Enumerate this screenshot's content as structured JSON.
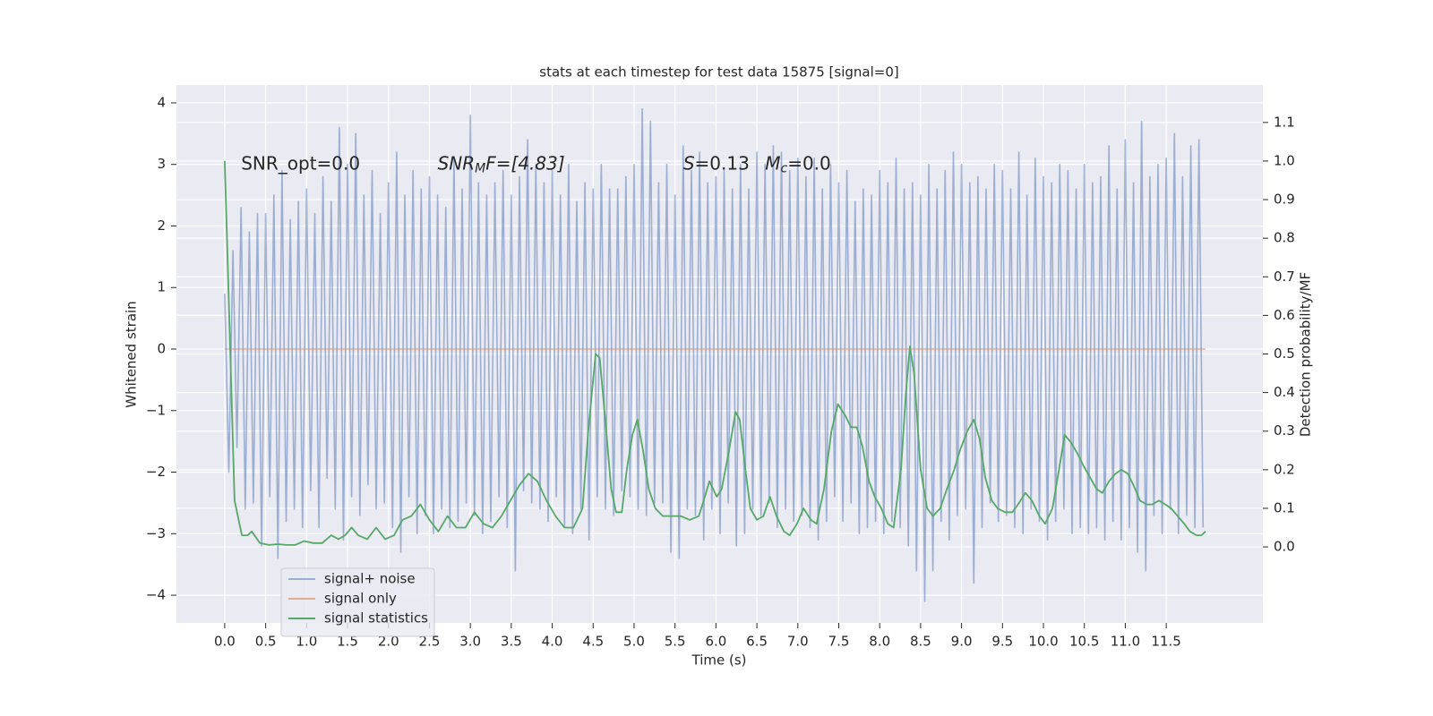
{
  "chart_data": {
    "type": "line",
    "title": "stats at each timestep for test data 15875 [signal=0]",
    "xlabel": "Time (s)",
    "ylabel": "Whitened strain",
    "y2label": "Detection probability/MF",
    "xlim": [
      -0.59,
      12.68
    ],
    "ylim": [
      -4.45,
      4.29
    ],
    "y2lim": [
      -0.197,
      1.197
    ],
    "grid": true,
    "legend": "lower left",
    "xticks": [
      {
        "value": 0,
        "label": "0.0"
      },
      {
        "value": 0.5,
        "label": "0.5"
      },
      {
        "value": 1,
        "label": "1.0"
      },
      {
        "value": 1.5,
        "label": "1.5"
      },
      {
        "value": 2,
        "label": "2.0"
      },
      {
        "value": 2.5,
        "label": "2.5"
      },
      {
        "value": 3,
        "label": "3.0"
      },
      {
        "value": 3.5,
        "label": "3.5"
      },
      {
        "value": 4,
        "label": "4.0"
      },
      {
        "value": 4.5,
        "label": "4.5"
      },
      {
        "value": 5,
        "label": "5.0"
      },
      {
        "value": 5.5,
        "label": "5.5"
      },
      {
        "value": 6,
        "label": "6.0"
      },
      {
        "value": 6.5,
        "label": "6.5"
      },
      {
        "value": 7,
        "label": "7.0"
      },
      {
        "value": 7.5,
        "label": "7.5"
      },
      {
        "value": 8,
        "label": "8.0"
      },
      {
        "value": 8.5,
        "label": "8.5"
      },
      {
        "value": 9,
        "label": "9.0"
      },
      {
        "value": 9.5,
        "label": "9.5"
      },
      {
        "value": 10,
        "label": "10.0"
      },
      {
        "value": 10.5,
        "label": "10.5"
      },
      {
        "value": 11,
        "label": "11.0"
      },
      {
        "value": 11.5,
        "label": "11.5"
      }
    ],
    "yticks": [
      {
        "value": -4,
        "label": "−4"
      },
      {
        "value": -3,
        "label": "−3"
      },
      {
        "value": -2,
        "label": "−2"
      },
      {
        "value": -1,
        "label": "−1"
      },
      0,
      1,
      2,
      3,
      4
    ],
    "y2ticks": [
      {
        "value": 0,
        "label": "0.0"
      },
      {
        "value": 0.1,
        "label": "0.1"
      },
      {
        "value": 0.2,
        "label": "0.2"
      },
      {
        "value": 0.3,
        "label": "0.3"
      },
      {
        "value": 0.4,
        "label": "0.4"
      },
      {
        "value": 0.5,
        "label": "0.5"
      },
      {
        "value": 0.6,
        "label": "0.6"
      },
      {
        "value": 0.7,
        "label": "0.7"
      },
      {
        "value": 0.8,
        "label": "0.8"
      },
      {
        "value": 0.9,
        "label": "0.9"
      },
      {
        "value": 1.0,
        "label": "1.0"
      },
      {
        "value": 1.1,
        "label": "1.1"
      }
    ],
    "annotations": [
      {
        "parts": [
          "SNR_opt=0.0"
        ]
      },
      {
        "parts": [
          "SNR",
          "M",
          "F=[4.83]"
        ]
      },
      {
        "parts": [
          "S",
          "=0.13"
        ]
      },
      {
        "parts": [
          "M",
          "c",
          "=0.0"
        ]
      }
    ],
    "series": [
      {
        "name": "signal+ noise",
        "color": "#4c72b0",
        "x": [
          0,
          0.05,
          0.1,
          0.15,
          0.2,
          0.25,
          0.3,
          0.35,
          0.4,
          0.45,
          0.5,
          0.55,
          0.6,
          0.65,
          0.7,
          0.75,
          0.8,
          0.85,
          0.9,
          0.95,
          1,
          1.05,
          1.1,
          1.15,
          1.2,
          1.25,
          1.3,
          1.35,
          1.4,
          1.45,
          1.5,
          1.55,
          1.6,
          1.65,
          1.7,
          1.75,
          1.8,
          1.85,
          1.9,
          1.95,
          2,
          2.05,
          2.1,
          2.15,
          2.2,
          2.25,
          2.3,
          2.35,
          2.4,
          2.45,
          2.5,
          2.55,
          2.6,
          2.65,
          2.7,
          2.75,
          2.8,
          2.85,
          2.9,
          2.95,
          3,
          3.05,
          3.1,
          3.15,
          3.2,
          3.25,
          3.3,
          3.35,
          3.4,
          3.45,
          3.5,
          3.55,
          3.6,
          3.65,
          3.7,
          3.75,
          3.8,
          3.85,
          3.9,
          3.95,
          4,
          4.05,
          4.1,
          4.15,
          4.2,
          4.25,
          4.3,
          4.35,
          4.4,
          4.45,
          4.5,
          4.55,
          4.6,
          4.65,
          4.7,
          4.75,
          4.8,
          4.85,
          4.9,
          4.95,
          5,
          5.05,
          5.1,
          5.15,
          5.2,
          5.25,
          5.3,
          5.35,
          5.4,
          5.45,
          5.5,
          5.55,
          5.6,
          5.65,
          5.7,
          5.75,
          5.8,
          5.85,
          5.9,
          5.95,
          6,
          6.05,
          6.1,
          6.15,
          6.2,
          6.25,
          6.3,
          6.35,
          6.4,
          6.45,
          6.5,
          6.55,
          6.6,
          6.65,
          6.7,
          6.75,
          6.8,
          6.85,
          6.9,
          6.95,
          7,
          7.05,
          7.1,
          7.15,
          7.2,
          7.25,
          7.3,
          7.35,
          7.4,
          7.45,
          7.5,
          7.55,
          7.6,
          7.65,
          7.7,
          7.75,
          7.8,
          7.85,
          7.9,
          7.95,
          8,
          8.05,
          8.1,
          8.15,
          8.2,
          8.25,
          8.3,
          8.35,
          8.4,
          8.45,
          8.5,
          8.55,
          8.6,
          8.65,
          8.7,
          8.75,
          8.8,
          8.85,
          8.9,
          8.95,
          9,
          9.05,
          9.1,
          9.15,
          9.2,
          9.25,
          9.3,
          9.35,
          9.4,
          9.45,
          9.5,
          9.55,
          9.6,
          9.65,
          9.7,
          9.75,
          9.8,
          9.85,
          9.9,
          9.95,
          10,
          10.05,
          10.1,
          10.15,
          10.2,
          10.25,
          10.3,
          10.35,
          10.4,
          10.45,
          10.5,
          10.55,
          10.6,
          10.65,
          10.7,
          10.75,
          10.8,
          10.85,
          10.9,
          10.95,
          11,
          11.05,
          11.1,
          11.15,
          11.2,
          11.25,
          11.3,
          11.35,
          11.4,
          11.45,
          11.5,
          11.55,
          11.6,
          11.65,
          11.7,
          11.75,
          11.8,
          11.85,
          11.9,
          11.95
        ],
        "values": [
          0.9,
          -2.0,
          1.6,
          -1.6,
          2.3,
          -2.6,
          1.9,
          -2.5,
          2.2,
          -3.2,
          2.2,
          -2.4,
          2.5,
          -3.4,
          2.9,
          -2.8,
          2.1,
          -2.6,
          2.4,
          -2.9,
          2.6,
          -2.3,
          2.2,
          -2.9,
          2.8,
          -2.1,
          2.4,
          -2.6,
          3.6,
          -3.1,
          3.0,
          -2.4,
          3.5,
          -2.7,
          2.5,
          -2.2,
          2.9,
          -2.6,
          2.2,
          -2.5,
          2.7,
          -2.9,
          3.2,
          -3.3,
          2.5,
          -2.4,
          2.9,
          -3.0,
          2.6,
          -2.7,
          2.8,
          -3.0,
          2.5,
          -2.6,
          2.3,
          -2.9,
          3.1,
          -2.8,
          2.6,
          -2.5,
          3.8,
          -2.7,
          2.7,
          -3.0,
          2.5,
          -2.8,
          2.7,
          -2.4,
          2.9,
          -2.9,
          2.5,
          -3.6,
          2.8,
          -2.3,
          3.4,
          -2.5,
          3.0,
          -2.6,
          2.7,
          -2.8,
          2.9,
          -2.4,
          2.5,
          -2.9,
          3.0,
          -3.0,
          2.4,
          -2.6,
          2.7,
          -3.1,
          2.6,
          -2.4,
          3.0,
          -2.6,
          2.6,
          -2.7,
          2.6,
          -2.3,
          2.8,
          -2.4,
          3.0,
          -2.6,
          3.9,
          -2.7,
          3.7,
          -2.5,
          2.7,
          -2.5,
          3.0,
          -3.3,
          2.5,
          -3.4,
          3.3,
          -2.6,
          2.9,
          -2.7,
          3.2,
          -3.1,
          2.7,
          -2.6,
          2.8,
          -3.0,
          2.9,
          -2.5,
          2.6,
          -3.2,
          3.0,
          -3.0,
          2.6,
          -2.6,
          3.2,
          -2.7,
          3.0,
          -2.5,
          3.3,
          -2.9,
          3.2,
          -2.6,
          2.9,
          -2.8,
          3.1,
          -2.7,
          2.8,
          -2.9,
          3.1,
          -3.1,
          2.6,
          -2.8,
          3.0,
          -2.4,
          2.7,
          -2.8,
          2.9,
          -2.5,
          2.4,
          -3.0,
          2.6,
          -2.9,
          2.5,
          -2.8,
          2.9,
          -3.0,
          2.7,
          -2.8,
          3.1,
          -2.9,
          2.6,
          -3.2,
          2.7,
          -3.6,
          2.5,
          -4.1,
          3.0,
          -3.6,
          2.6,
          -2.8,
          2.9,
          -3.1,
          3.2,
          -2.7,
          3.0,
          -2.6,
          2.7,
          -3.8,
          2.8,
          -2.9,
          2.6,
          -2.5,
          3.0,
          -2.8,
          2.9,
          -2.7,
          2.6,
          -2.9,
          3.2,
          -3.0,
          2.5,
          -2.6,
          3.1,
          -2.8,
          2.8,
          -3.1,
          2.7,
          -2.8,
          3.0,
          -2.6,
          2.9,
          -3.0,
          2.6,
          -2.9,
          3.0,
          -3.0,
          2.7,
          -2.9,
          2.8,
          -3.1,
          3.3,
          -2.8,
          2.6,
          -3.1,
          3.4,
          -2.9,
          2.7,
          -3.3,
          3.7,
          -3.6,
          2.8,
          -2.7,
          3.0,
          -3.0,
          3.1,
          -2.6,
          3.5,
          -3.0,
          2.8,
          -2.7,
          3.3,
          -2.9,
          3.4,
          -2.9
        ]
      },
      {
        "name": "signal only",
        "color": "#dd8452",
        "x": [
          0,
          11.98
        ],
        "values": [
          0,
          0
        ]
      },
      {
        "name": "signal statistics",
        "color": "#55a868",
        "axis": "y2",
        "x": [
          0,
          0.03,
          0.12,
          0.21,
          0.28,
          0.33,
          0.43,
          0.54,
          0.65,
          0.75,
          0.86,
          0.97,
          1.08,
          1.19,
          1.3,
          1.39,
          1.47,
          1.55,
          1.63,
          1.74,
          1.85,
          1.96,
          2.07,
          2.17,
          2.28,
          2.39,
          2.5,
          2.61,
          2.72,
          2.83,
          2.94,
          3.05,
          3.16,
          3.27,
          3.38,
          3.49,
          3.6,
          3.71,
          3.82,
          3.93,
          4.04,
          4.15,
          4.26,
          4.37,
          4.44,
          4.53,
          4.58,
          4.66,
          4.72,
          4.78,
          4.85,
          4.91,
          4.98,
          5.04,
          5.11,
          5.18,
          5.26,
          5.35,
          5.46,
          5.57,
          5.68,
          5.79,
          5.85,
          5.92,
          6.01,
          6.07,
          6.16,
          6.24,
          6.29,
          6.36,
          6.42,
          6.5,
          6.58,
          6.66,
          6.74,
          6.83,
          6.9,
          6.99,
          7.07,
          7.16,
          7.23,
          7.32,
          7.41,
          7.49,
          7.58,
          7.65,
          7.72,
          7.79,
          7.87,
          7.94,
          8.02,
          8.1,
          8.17,
          8.26,
          8.32,
          8.37,
          8.42,
          8.5,
          8.58,
          8.65,
          8.74,
          8.82,
          8.91,
          8.98,
          9.07,
          9.15,
          9.22,
          9.29,
          9.37,
          9.44,
          9.53,
          9.62,
          9.69,
          9.78,
          9.86,
          9.95,
          10.02,
          10.11,
          10.19,
          10.26,
          10.34,
          10.42,
          10.49,
          10.57,
          10.65,
          10.72,
          10.8,
          10.88,
          10.95,
          11.03,
          11.1,
          11.18,
          11.26,
          11.33,
          11.41,
          11.49,
          11.56,
          11.64,
          11.72,
          11.79,
          11.87,
          11.93,
          11.98
        ],
        "values": [
          1.0,
          0.78,
          0.12,
          0.03,
          0.03,
          0.04,
          0.01,
          0.005,
          0.007,
          0.005,
          0.005,
          0.015,
          0.01,
          0.01,
          0.03,
          0.02,
          0.03,
          0.05,
          0.03,
          0.02,
          0.05,
          0.02,
          0.03,
          0.07,
          0.08,
          0.11,
          0.07,
          0.04,
          0.08,
          0.05,
          0.05,
          0.09,
          0.06,
          0.05,
          0.08,
          0.12,
          0.16,
          0.19,
          0.17,
          0.12,
          0.08,
          0.05,
          0.05,
          0.1,
          0.3,
          0.5,
          0.49,
          0.3,
          0.15,
          0.09,
          0.09,
          0.2,
          0.29,
          0.33,
          0.25,
          0.15,
          0.1,
          0.08,
          0.08,
          0.08,
          0.07,
          0.08,
          0.12,
          0.17,
          0.13,
          0.15,
          0.25,
          0.35,
          0.33,
          0.2,
          0.1,
          0.07,
          0.08,
          0.13,
          0.08,
          0.04,
          0.03,
          0.06,
          0.1,
          0.07,
          0.06,
          0.15,
          0.3,
          0.37,
          0.34,
          0.31,
          0.31,
          0.26,
          0.17,
          0.13,
          0.1,
          0.06,
          0.05,
          0.2,
          0.4,
          0.52,
          0.45,
          0.2,
          0.1,
          0.08,
          0.1,
          0.15,
          0.2,
          0.25,
          0.3,
          0.33,
          0.28,
          0.18,
          0.12,
          0.1,
          0.09,
          0.09,
          0.11,
          0.14,
          0.12,
          0.08,
          0.06,
          0.1,
          0.2,
          0.29,
          0.27,
          0.24,
          0.21,
          0.18,
          0.15,
          0.14,
          0.17,
          0.19,
          0.2,
          0.19,
          0.16,
          0.12,
          0.11,
          0.11,
          0.12,
          0.11,
          0.1,
          0.08,
          0.06,
          0.04,
          0.03,
          0.03,
          0.04
        ]
      }
    ]
  }
}
